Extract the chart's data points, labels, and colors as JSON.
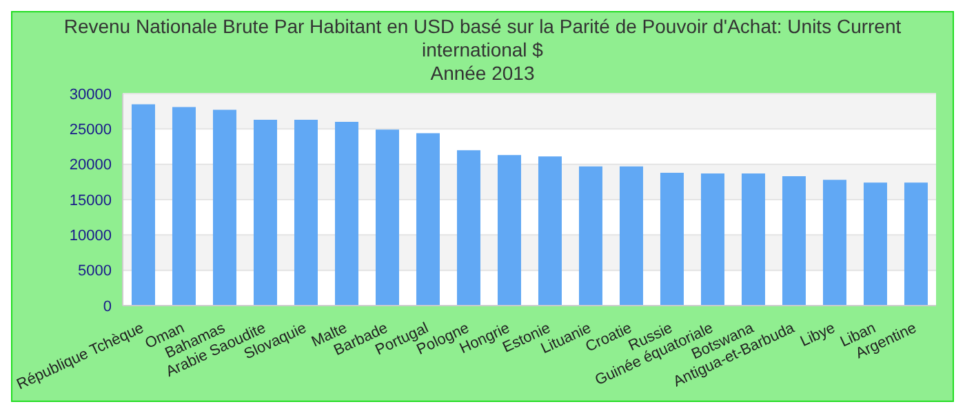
{
  "chart_data": {
    "type": "bar",
    "title": "Revenu Nationale Brute Par Habitant en USD basé sur la Parité de Pouvoir d'Achat: Units Current international $",
    "subtitle": "Année 2013",
    "categories": [
      "République Tchèque",
      "Oman",
      "Bahamas",
      "Arabie Saoudite",
      "Slovaquie",
      "Malte",
      "Barbade",
      "Portugal",
      "Pologne",
      "Hongrie",
      "Estonie",
      "Lituanie",
      "Croatie",
      "Russie",
      "Guinée équatoriale",
      "Botswana",
      "Antigua-et-Barbuda",
      "Libye",
      "Liban",
      "Argentine"
    ],
    "values": [
      28500,
      28100,
      27700,
      26300,
      26300,
      26000,
      24900,
      24400,
      22000,
      21300,
      21100,
      19700,
      19700,
      18800,
      18700,
      18700,
      18300,
      17800,
      17400,
      17400
    ],
    "color": "#61a8f4",
    "ylim": [
      0,
      30000
    ],
    "yticks": [
      0,
      5000,
      10000,
      15000,
      20000,
      25000,
      30000
    ],
    "grid": "y"
  }
}
